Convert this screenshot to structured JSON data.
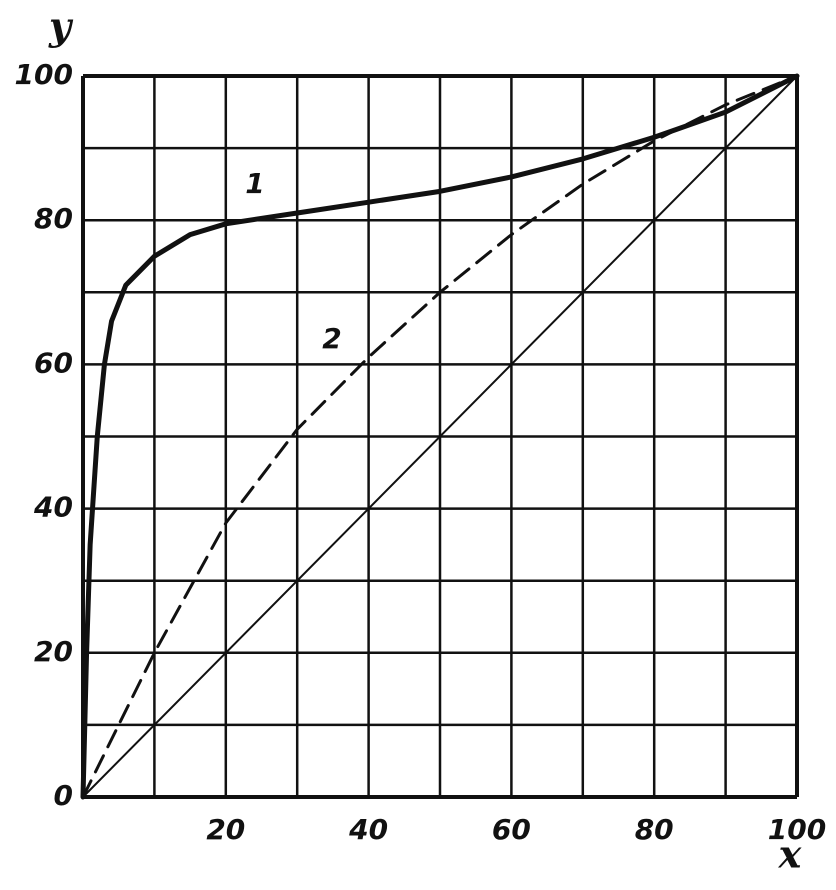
{
  "chart_data": {
    "type": "line",
    "xlabel": "x",
    "ylabel": "y",
    "xlim": [
      0,
      100
    ],
    "ylim": [
      0,
      100
    ],
    "xticks": [
      20,
      40,
      60,
      80,
      100
    ],
    "yticks": [
      0,
      20,
      40,
      60,
      80,
      100
    ],
    "xgrid": [
      0,
      10,
      20,
      30,
      40,
      50,
      60,
      70,
      80,
      90,
      100
    ],
    "ygrid": [
      0,
      10,
      20,
      30,
      40,
      50,
      60,
      70,
      80,
      90,
      100
    ],
    "grid": true,
    "series": [
      {
        "name": "1",
        "color": "#111111",
        "line_width": 5,
        "dashed": false,
        "x": [
          0,
          0.5,
          1,
          2,
          3,
          4,
          6,
          10,
          15,
          20,
          30,
          40,
          50,
          60,
          70,
          80,
          90,
          100
        ],
        "values": [
          0,
          20,
          35,
          50,
          60,
          66,
          71,
          75,
          78,
          79.5,
          81,
          82.5,
          84,
          86,
          88.5,
          91.5,
          95,
          100
        ]
      },
      {
        "name": "2",
        "color": "#111111",
        "line_width": 3,
        "dashed": true,
        "x": [
          0,
          5,
          10,
          20,
          30,
          40,
          50,
          60,
          70,
          80,
          90,
          100
        ],
        "values": [
          0,
          10,
          20,
          38,
          51,
          61,
          70,
          78,
          85,
          91,
          96,
          100
        ]
      },
      {
        "color": "#111111",
        "line_width": 2,
        "dashed": false,
        "x": [
          0,
          100
        ],
        "values": [
          0,
          100
        ]
      }
    ]
  }
}
